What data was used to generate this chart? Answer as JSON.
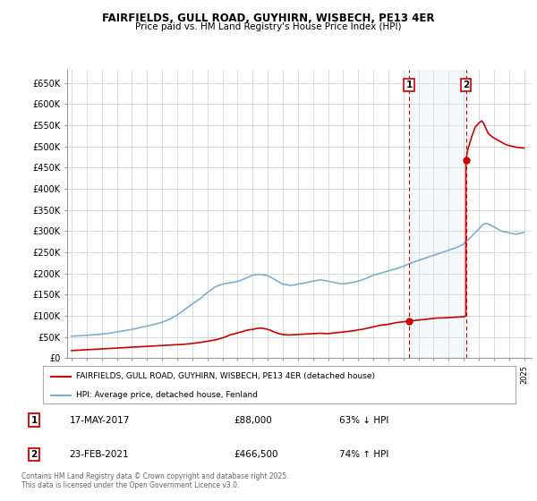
{
  "title1": "FAIRFIELDS, GULL ROAD, GUYHIRN, WISBECH, PE13 4ER",
  "title2": "Price paid vs. HM Land Registry's House Price Index (HPI)",
  "background_color": "#ffffff",
  "grid_color": "#cccccc",
  "shade_color": "#dde8f5",
  "legend_label_red": "FAIRFIELDS, GULL ROAD, GUYHIRN, WISBECH, PE13 4ER (detached house)",
  "legend_label_blue": "HPI: Average price, detached house, Fenland",
  "annotation1_date": "17-MAY-2017",
  "annotation1_price": "£88,000",
  "annotation1_hpi": "63% ↓ HPI",
  "annotation1_year": 2017.37,
  "annotation1_value": 88000,
  "annotation2_date": "23-FEB-2021",
  "annotation2_price": "£466,500",
  "annotation2_hpi": "74% ↑ HPI",
  "annotation2_year": 2021.14,
  "annotation2_value": 466500,
  "footer": "Contains HM Land Registry data © Crown copyright and database right 2025.\nThis data is licensed under the Open Government Licence v3.0.",
  "ylim": [
    0,
    680000
  ],
  "yticks": [
    0,
    50000,
    100000,
    150000,
    200000,
    250000,
    300000,
    350000,
    400000,
    450000,
    500000,
    550000,
    600000,
    650000
  ],
  "ytick_labels": [
    "£0",
    "£50K",
    "£100K",
    "£150K",
    "£200K",
    "£250K",
    "£300K",
    "£350K",
    "£400K",
    "£450K",
    "£500K",
    "£550K",
    "£600K",
    "£650K"
  ],
  "hpi_years": [
    1995.0,
    1995.25,
    1995.5,
    1995.75,
    1996.0,
    1996.25,
    1996.5,
    1996.75,
    1997.0,
    1997.25,
    1997.5,
    1997.75,
    1998.0,
    1998.25,
    1998.5,
    1998.75,
    1999.0,
    1999.25,
    1999.5,
    1999.75,
    2000.0,
    2000.25,
    2000.5,
    2000.75,
    2001.0,
    2001.25,
    2001.5,
    2001.75,
    2002.0,
    2002.25,
    2002.5,
    2002.75,
    2003.0,
    2003.25,
    2003.5,
    2003.75,
    2004.0,
    2004.25,
    2004.5,
    2004.75,
    2005.0,
    2005.25,
    2005.5,
    2005.75,
    2006.0,
    2006.25,
    2006.5,
    2006.75,
    2007.0,
    2007.25,
    2007.5,
    2007.75,
    2008.0,
    2008.25,
    2008.5,
    2008.75,
    2009.0,
    2009.25,
    2009.5,
    2009.75,
    2010.0,
    2010.25,
    2010.5,
    2010.75,
    2011.0,
    2011.25,
    2011.5,
    2011.75,
    2012.0,
    2012.25,
    2012.5,
    2012.75,
    2013.0,
    2013.25,
    2013.5,
    2013.75,
    2014.0,
    2014.25,
    2014.5,
    2014.75,
    2015.0,
    2015.25,
    2015.5,
    2015.75,
    2016.0,
    2016.25,
    2016.5,
    2016.75,
    2017.0,
    2017.25,
    2017.5,
    2017.75,
    2018.0,
    2018.25,
    2018.5,
    2018.75,
    2019.0,
    2019.25,
    2019.5,
    2019.75,
    2020.0,
    2020.25,
    2020.5,
    2020.75,
    2021.0,
    2021.25,
    2021.5,
    2021.75,
    2022.0,
    2022.25,
    2022.5,
    2022.75,
    2023.0,
    2023.25,
    2023.5,
    2023.75,
    2024.0,
    2024.25,
    2024.5,
    2024.75,
    2025.0
  ],
  "hpi_values": [
    52000,
    52500,
    53000,
    53500,
    54000,
    54800,
    55500,
    56200,
    57000,
    58000,
    59000,
    60500,
    62000,
    63500,
    65000,
    66500,
    68000,
    70000,
    72000,
    74000,
    76000,
    78000,
    80000,
    82500,
    85000,
    88500,
    92000,
    97000,
    102000,
    108500,
    115000,
    121500,
    128000,
    134000,
    140000,
    147500,
    155000,
    161500,
    168000,
    171500,
    175000,
    176500,
    178000,
    179500,
    181000,
    184500,
    188000,
    192000,
    196000,
    197000,
    198000,
    196500,
    195000,
    190000,
    185000,
    180000,
    175000,
    173500,
    172000,
    173000,
    175000,
    176500,
    178000,
    180000,
    182000,
    183500,
    185000,
    183500,
    182000,
    180000,
    178000,
    176500,
    175500,
    176500,
    178000,
    180000,
    182000,
    185000,
    188000,
    192000,
    196000,
    198500,
    201000,
    203500,
    206000,
    208500,
    211000,
    214000,
    217000,
    221000,
    225000,
    228000,
    231000,
    234000,
    237000,
    240000,
    243000,
    246000,
    249000,
    252000,
    255000,
    258000,
    261000,
    265000,
    270000,
    278000,
    287000,
    296000,
    305000,
    315000,
    318000,
    315000,
    310000,
    305000,
    300000,
    298000,
    296000,
    294000,
    293000,
    295000,
    297000
  ],
  "red_years": [
    1995.0,
    1995.25,
    1995.5,
    1995.75,
    1996.0,
    1996.5,
    1997.0,
    1997.5,
    1998.0,
    1998.5,
    1999.0,
    1999.5,
    2000.0,
    2000.5,
    2001.0,
    2001.5,
    2002.0,
    2002.5,
    2003.0,
    2003.5,
    2004.0,
    2004.5,
    2005.0,
    2005.25,
    2005.5,
    2005.75,
    2006.0,
    2006.25,
    2006.5,
    2006.75,
    2007.0,
    2007.25,
    2007.5,
    2007.75,
    2008.0,
    2008.25,
    2008.5,
    2008.75,
    2009.0,
    2009.25,
    2009.5,
    2009.75,
    2010.0,
    2010.25,
    2010.5,
    2010.75,
    2011.0,
    2011.25,
    2011.5,
    2011.75,
    2012.0,
    2012.25,
    2012.5,
    2012.75,
    2013.0,
    2013.25,
    2013.5,
    2013.75,
    2014.0,
    2014.25,
    2014.5,
    2014.75,
    2015.0,
    2015.25,
    2015.5,
    2015.75,
    2016.0,
    2016.25,
    2016.5,
    2016.75,
    2017.0,
    2017.25,
    2017.37,
    2017.37,
    2017.5,
    2017.75,
    2018.0,
    2018.25,
    2018.5,
    2018.75,
    2019.0,
    2019.25,
    2019.5,
    2019.75,
    2020.0,
    2020.25,
    2020.5,
    2020.75,
    2021.0,
    2021.1,
    2021.14,
    2021.14,
    2021.25,
    2021.5,
    2021.75,
    2022.0,
    2022.1,
    2022.2,
    2022.3,
    2022.4,
    2022.5,
    2022.6,
    2022.7,
    2022.8,
    2022.9,
    2023.0,
    2023.1,
    2023.2,
    2023.3,
    2023.5,
    2023.75,
    2024.0,
    2024.25,
    2024.5,
    2024.75,
    2025.0
  ],
  "red_values": [
    18000,
    18500,
    19000,
    19500,
    20000,
    21000,
    22000,
    23000,
    24000,
    25000,
    26000,
    27000,
    28000,
    29000,
    30000,
    31000,
    32000,
    33000,
    35000,
    37000,
    40000,
    43000,
    48000,
    51000,
    55000,
    57000,
    60000,
    62000,
    65000,
    67000,
    68000,
    70000,
    71000,
    70000,
    68000,
    65000,
    61000,
    58000,
    56000,
    55000,
    55000,
    55500,
    56000,
    56500,
    57000,
    57500,
    58000,
    58500,
    59000,
    58500,
    58000,
    59000,
    60000,
    61000,
    62000,
    63000,
    64000,
    65000,
    67000,
    68000,
    70000,
    72000,
    74000,
    76000,
    78000,
    79000,
    80000,
    82000,
    84000,
    85000,
    86000,
    87000,
    88000,
    88000,
    88500,
    89000,
    90000,
    91000,
    92000,
    93000,
    94000,
    95000,
    95000,
    95500,
    96000,
    96500,
    97000,
    97500,
    98000,
    99000,
    100000,
    466500,
    490000,
    520000,
    545000,
    555000,
    558000,
    560000,
    555000,
    548000,
    540000,
    532000,
    528000,
    525000,
    522000,
    520000,
    518000,
    516000,
    514000,
    510000,
    505000,
    502000,
    500000,
    498000,
    497000,
    496000
  ]
}
